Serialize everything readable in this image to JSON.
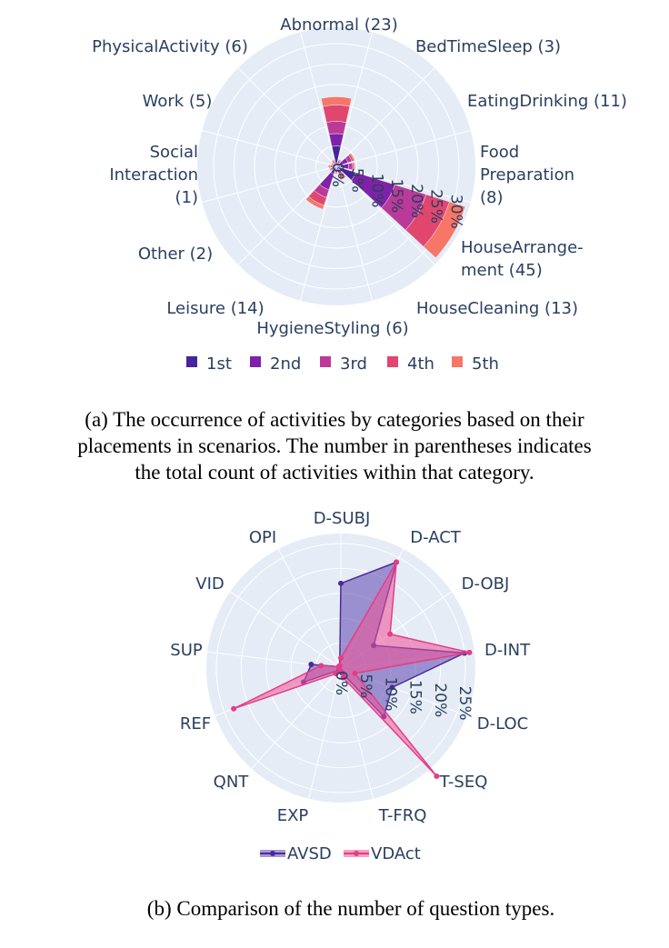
{
  "chart_data": [
    {
      "type": "barpolar",
      "title": "",
      "categories": [
        "Abnormal (23)",
        "BedTimeSleep (3)",
        "EatingDrinking (11)",
        "Food Preparation (8)",
        "HouseArrangement (45)",
        "HouseCleaning (13)",
        "HygieneStyling (6)",
        "Leisure (14)",
        "Other (2)",
        "Social Interaction (1)",
        "Work (5)",
        "PhysicalActivity (6)"
      ],
      "category_lines": [
        [
          "Abnormal (23)"
        ],
        [
          "BedTimeSleep (3)"
        ],
        [
          "EatingDrinking (11)"
        ],
        [
          "Food",
          "Preparation",
          "(8)"
        ],
        [
          "HouseArrange-",
          "ment (45)"
        ],
        [
          "HouseCleaning (13)"
        ],
        [
          "HygieneStyling (6)"
        ],
        [
          "Leisure (14)"
        ],
        [
          "Other (2)"
        ],
        [
          "Social",
          "Interaction",
          "(1)"
        ],
        [
          "Work (5)"
        ],
        [
          "PhysicalActivity (6)"
        ]
      ],
      "radial_ticks": [
        "0%",
        "5%",
        "10%",
        "15%",
        "20%",
        "25%",
        "30%"
      ],
      "radial_range": [
        0,
        34
      ],
      "series": [
        {
          "name": "1st",
          "color": "#46259a",
          "values": [
            5,
            0,
            1,
            1,
            5,
            0,
            0,
            2,
            0,
            0.3,
            0,
            0.3
          ]
        },
        {
          "name": "2nd",
          "color": "#7e22a8",
          "values": [
            3,
            0.5,
            2,
            2,
            10,
            1,
            0.5,
            4,
            0.5,
            0.3,
            0.2,
            0.3
          ]
        },
        {
          "name": "3rd",
          "color": "#bb3a99",
          "values": [
            3,
            0.5,
            1,
            1,
            8,
            1,
            0.5,
            2,
            0.5,
            0.3,
            0.3,
            0.3
          ]
        },
        {
          "name": "4th",
          "color": "#e0466e",
          "values": [
            4,
            0.5,
            0.5,
            0.3,
            6,
            1,
            0.5,
            2,
            0.5,
            0.5,
            0.5,
            0.5
          ]
        },
        {
          "name": "5th",
          "color": "#f87667",
          "values": [
            2,
            0.3,
            0.3,
            0.3,
            4,
            0.5,
            0.3,
            1,
            0.3,
            0.5,
            0.3,
            0.3
          ]
        }
      ],
      "caption": [
        "(a) The occurrence of activities by categories based on their",
        "placements in scenarios. The number in parentheses indicates",
        "the total count of activities within that category."
      ]
    },
    {
      "type": "radar",
      "title": "",
      "categories": [
        "D-SUBJ",
        "D-ACT",
        "D-OBJ",
        "D-INT",
        "D-LOC",
        "T-SEQ",
        "T-FRQ",
        "EXP",
        "QNT",
        "REF",
        "SUP",
        "VID",
        "OPI"
      ],
      "radial_ticks": [
        "0%",
        "5%",
        "10%",
        "15%",
        "20%",
        "25%"
      ],
      "radial_range": [
        0,
        27
      ],
      "series": [
        {
          "name": "AVSD",
          "color": "#4a2b9a",
          "fill": "rgba(95,70,175,0.55)",
          "values": [
            17,
            24,
            8,
            25,
            11,
            13,
            1,
            0.5,
            0.5,
            8,
            6,
            0.5,
            0.5
          ]
        },
        {
          "name": "VDAct",
          "color": "#e33e86",
          "fill": "rgba(238,80,150,0.55)",
          "values": [
            2,
            24,
            12,
            26,
            3,
            29,
            2,
            0.5,
            1.5,
            23,
            4,
            0.5,
            0.5
          ]
        }
      ],
      "caption": [
        "(b) Comparison of the number of question types."
      ]
    }
  ]
}
